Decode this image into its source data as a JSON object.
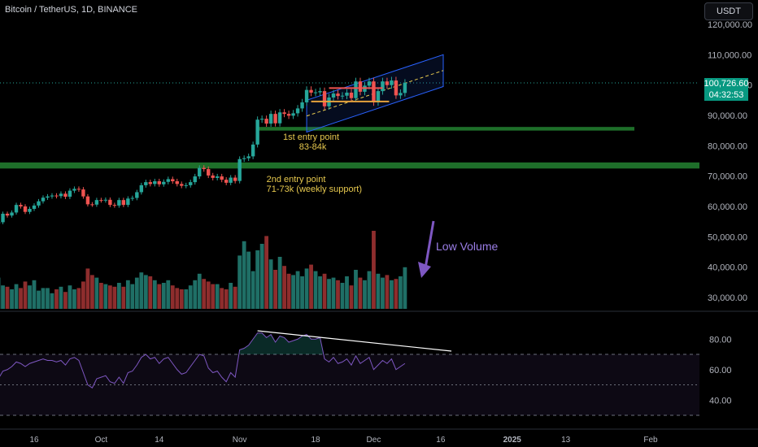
{
  "header": {
    "symbol": "Bitcoin / TetherUS, 1D, BINANCE",
    "currency": "USDT"
  },
  "price": {
    "last": "100,726.60",
    "countdown": "04:32:53"
  },
  "colors": {
    "up": "#26a69a",
    "down": "#ef5350",
    "upVol": "#1f6f66",
    "downVol": "#8e2d2d",
    "zone": "#1e6f2a",
    "channel": "#2962ff",
    "rsi": "#7e57c2",
    "annotation": "#e6c84e"
  },
  "chart_data": [
    {
      "type": "candlestick",
      "title": "Bitcoin / TetherUS, 1D, BINANCE",
      "y_ticks": [
        "120,000.00",
        "110,000.00",
        "100,000.00",
        "90,000.00",
        "80,000.00",
        "70,000.00",
        "60,000.00",
        "50,000.00",
        "40,000.00",
        "30,000.00"
      ],
      "y_tick_values": [
        120000,
        110000,
        100000,
        90000,
        80000,
        70000,
        60000,
        50000,
        40000,
        30000
      ],
      "x_ticks": [
        "16",
        "Oct",
        "14",
        "Nov",
        "18",
        "Dec",
        "16",
        "2025",
        "13",
        "Feb"
      ],
      "x_tick_dates": [
        "2024-09-16",
        "2024-10-01",
        "2024-10-14",
        "2024-11-01",
        "2024-11-18",
        "2024-12-01",
        "2024-12-16",
        "2025-01-01",
        "2025-01-13",
        "2025-02-01"
      ],
      "closes_start": "2024-09-08",
      "closes": [
        54800,
        57600,
        57000,
        58000,
        60500,
        60000,
        58200,
        59200,
        60300,
        61700,
        62900,
        63300,
        63600,
        63400,
        64200,
        63200,
        65200,
        65800,
        65600,
        63300,
        60700,
        60600,
        62100,
        62000,
        62200,
        60500,
        60300,
        62100,
        60500,
        62600,
        62800,
        64700,
        67000,
        68000,
        67400,
        68300,
        67300,
        68100,
        69000,
        68300,
        67400,
        66800,
        67000,
        68000,
        69900,
        72700,
        72300,
        70200,
        69400,
        69900,
        68800,
        67800,
        69500,
        68400,
        75600,
        75900,
        76500,
        80400,
        88600,
        88900,
        87300,
        90500,
        87400,
        91000,
        90500,
        89900,
        90700,
        92300,
        94300,
        98400,
        97500,
        97600,
        98000,
        93000,
        95900,
        97200,
        96400,
        96500,
        97500,
        95700,
        101200,
        97800,
        99800,
        101200,
        94300,
        98000,
        101200,
        100000,
        101500,
        96600,
        97400,
        100726
      ],
      "rsi_x_ticks": [
        "80.00",
        "60.00",
        "40.00"
      ],
      "rsi_levels": [
        70,
        50,
        30
      ],
      "rsi": [
        54,
        59,
        60,
        62,
        65,
        64,
        62,
        64,
        65,
        66,
        67,
        66,
        66,
        65,
        66,
        63,
        67,
        68,
        66,
        58,
        50,
        48,
        54,
        55,
        56,
        52,
        51,
        55,
        51,
        58,
        59,
        63,
        68,
        70,
        67,
        68,
        64,
        67,
        68,
        64,
        60,
        57,
        58,
        62,
        66,
        70,
        69,
        61,
        58,
        59,
        55,
        52,
        58,
        55,
        73,
        74,
        76,
        80,
        84,
        84,
        81,
        83,
        78,
        82,
        81,
        78,
        79,
        80,
        82,
        83,
        80,
        80,
        81,
        67,
        65,
        68,
        64,
        65,
        67,
        63,
        69,
        64,
        66,
        68,
        60,
        63,
        66,
        64,
        67,
        60,
        62,
        64
      ],
      "volume": [
        12000,
        9000,
        8500,
        7500,
        9500,
        8000,
        10500,
        9000,
        11000,
        7000,
        8000,
        8000,
        6000,
        7500,
        8500,
        6500,
        9000,
        7500,
        8000,
        10500,
        15500,
        13000,
        12000,
        10000,
        9500,
        9000,
        8500,
        10000,
        8500,
        11000,
        9500,
        12000,
        14000,
        13000,
        12500,
        11000,
        9500,
        10000,
        11000,
        9000,
        8000,
        7500,
        7500,
        9000,
        11000,
        13500,
        11500,
        10500,
        9500,
        9500,
        8000,
        7500,
        10000,
        8500,
        20500,
        26000,
        22000,
        14500,
        22500,
        25000,
        28000,
        19000,
        15000,
        20000,
        16500,
        13500,
        13000,
        14500,
        12500,
        15500,
        17000,
        14500,
        12500,
        13500,
        11500,
        12000,
        11000,
        10000,
        12500,
        9000,
        15000,
        12000,
        11000,
        14500,
        30000,
        13500,
        12000,
        13000,
        11000,
        11500,
        12500,
        16000
      ],
      "volume_axis_note": "volume pane overlaps price area bottom",
      "annotations": [
        {
          "text": "1st entry point",
          "sub": "83-84k"
        },
        {
          "text": "2nd entry point",
          "sub": "71-73k (weekly support)"
        },
        {
          "text": "Low Volume"
        }
      ],
      "support_zones": [
        [
          85000,
          86200
        ],
        [
          72500,
          74500
        ]
      ]
    }
  ]
}
